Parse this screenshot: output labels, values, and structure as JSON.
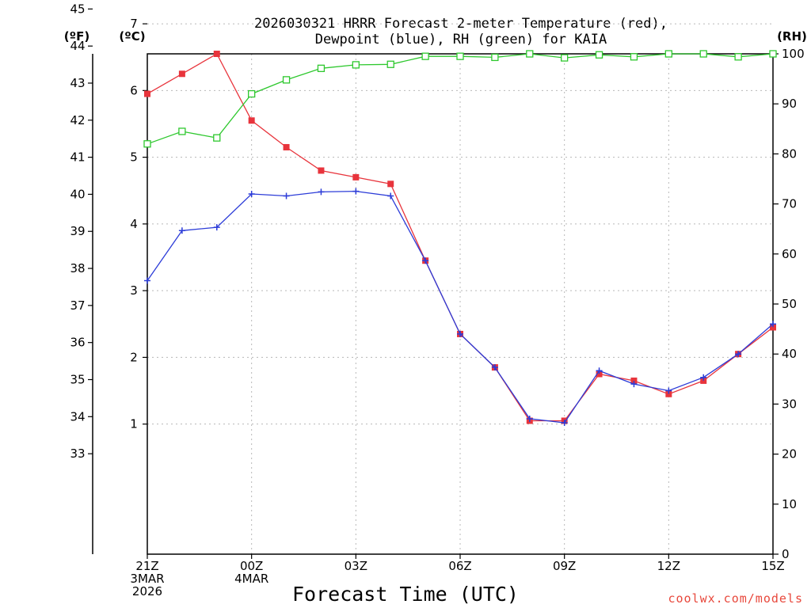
{
  "chart_data": {
    "type": "line",
    "title": [
      "2026030321 HRRR Forecast 2-meter Temperature (red),",
      "Dewpoint (blue), RH (green) for KAIA"
    ],
    "xlabel": "Forecast Time (UTC)",
    "x_tick_labels": [
      {
        "hour": 0,
        "lines": [
          "21Z",
          "3MAR",
          "2026"
        ]
      },
      {
        "hour": 3,
        "lines": [
          "00Z",
          "4MAR"
        ]
      },
      {
        "hour": 6,
        "lines": [
          "03Z"
        ]
      },
      {
        "hour": 9,
        "lines": [
          "06Z"
        ]
      },
      {
        "hour": 12,
        "lines": [
          "09Z"
        ]
      },
      {
        "hour": 15,
        "lines": [
          "12Z"
        ]
      },
      {
        "hour": 18,
        "lines": [
          "15Z"
        ]
      }
    ],
    "xlim": [
      0,
      18
    ],
    "axes": {
      "fahrenheit": {
        "unit_label": "(ºF)",
        "ticks": [
          33,
          34,
          35,
          36,
          37,
          38,
          39,
          40,
          41,
          42,
          43,
          44,
          45
        ]
      },
      "celsius": {
        "unit_label": "(ºC)",
        "ylim": [
          -0.95,
          6.55
        ],
        "ticks": [
          1,
          2,
          3,
          4,
          5,
          6,
          7
        ]
      },
      "rh": {
        "unit_label": "(RH)",
        "ylim": [
          0,
          100
        ],
        "ticks": [
          0,
          10,
          20,
          30,
          40,
          50,
          60,
          70,
          80,
          90,
          100
        ]
      }
    },
    "hours": [
      0,
      1,
      2,
      3,
      4,
      5,
      6,
      7,
      8,
      9,
      10,
      11,
      12,
      13,
      14,
      15,
      16,
      17,
      18
    ],
    "series": [
      {
        "name": "Temperature",
        "axis": "celsius",
        "color": "#e8343c",
        "marker": "square",
        "values": [
          5.95,
          6.25,
          6.55,
          5.55,
          5.15,
          4.8,
          4.7,
          4.6,
          3.45,
          2.35,
          1.85,
          1.05,
          1.05,
          1.75,
          1.65,
          1.45,
          1.65,
          2.05,
          2.45
        ]
      },
      {
        "name": "Dewpoint",
        "axis": "celsius",
        "color": "#2c3cd8",
        "marker": "plus",
        "values": [
          3.15,
          3.9,
          3.95,
          4.45,
          4.42,
          4.48,
          4.49,
          4.42,
          3.45,
          2.35,
          1.85,
          1.08,
          1.02,
          1.8,
          1.6,
          1.5,
          1.7,
          2.05,
          2.5
        ]
      },
      {
        "name": "RH",
        "axis": "rh",
        "color": "#2ec82e",
        "marker": "open-square",
        "values": [
          82,
          84.5,
          83.2,
          92,
          94.8,
          97.1,
          97.8,
          97.9,
          99.5,
          99.5,
          99.3,
          100,
          99.2,
          99.8,
          99.4,
          100,
          100,
          99.4,
          100
        ]
      }
    ]
  },
  "credit": "coolwx.com/models"
}
